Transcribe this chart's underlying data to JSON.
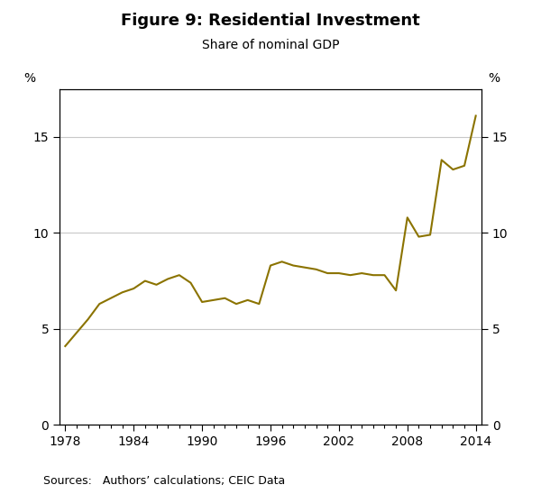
{
  "title": "Figure 9: Residential Investment",
  "subtitle": "Share of nominal GDP",
  "source_text": "Sources:   Authors’ calculations; CEIC Data",
  "line_color": "#8B7300",
  "line_width": 1.5,
  "background_color": "#ffffff",
  "grid_color": "#c8c8c8",
  "ylim": [
    0,
    17.5
  ],
  "yticks": [
    0,
    5,
    10,
    15
  ],
  "xlim": [
    1977.5,
    2014.5
  ],
  "xticks": [
    1978,
    1984,
    1990,
    1996,
    2002,
    2008,
    2014
  ],
  "ylabel_left": "%",
  "ylabel_right": "%",
  "years": [
    1978,
    1979,
    1980,
    1981,
    1982,
    1983,
    1984,
    1985,
    1986,
    1987,
    1988,
    1989,
    1990,
    1991,
    1992,
    1993,
    1994,
    1995,
    1996,
    1997,
    1998,
    1999,
    2000,
    2001,
    2002,
    2003,
    2004,
    2005,
    2006,
    2007,
    2008,
    2009,
    2010,
    2011,
    2012,
    2013,
    2014
  ],
  "values": [
    4.1,
    4.8,
    5.5,
    6.3,
    6.6,
    6.9,
    7.1,
    7.5,
    7.3,
    7.6,
    7.8,
    7.4,
    6.4,
    6.5,
    6.6,
    6.3,
    6.5,
    6.3,
    8.3,
    8.5,
    8.3,
    8.2,
    8.1,
    7.9,
    7.9,
    7.8,
    7.9,
    7.8,
    7.8,
    7.0,
    10.8,
    9.8,
    9.9,
    13.8,
    13.3,
    13.5,
    16.1
  ],
  "title_fontsize": 13,
  "subtitle_fontsize": 10,
  "tick_fontsize": 10,
  "source_fontsize": 9
}
